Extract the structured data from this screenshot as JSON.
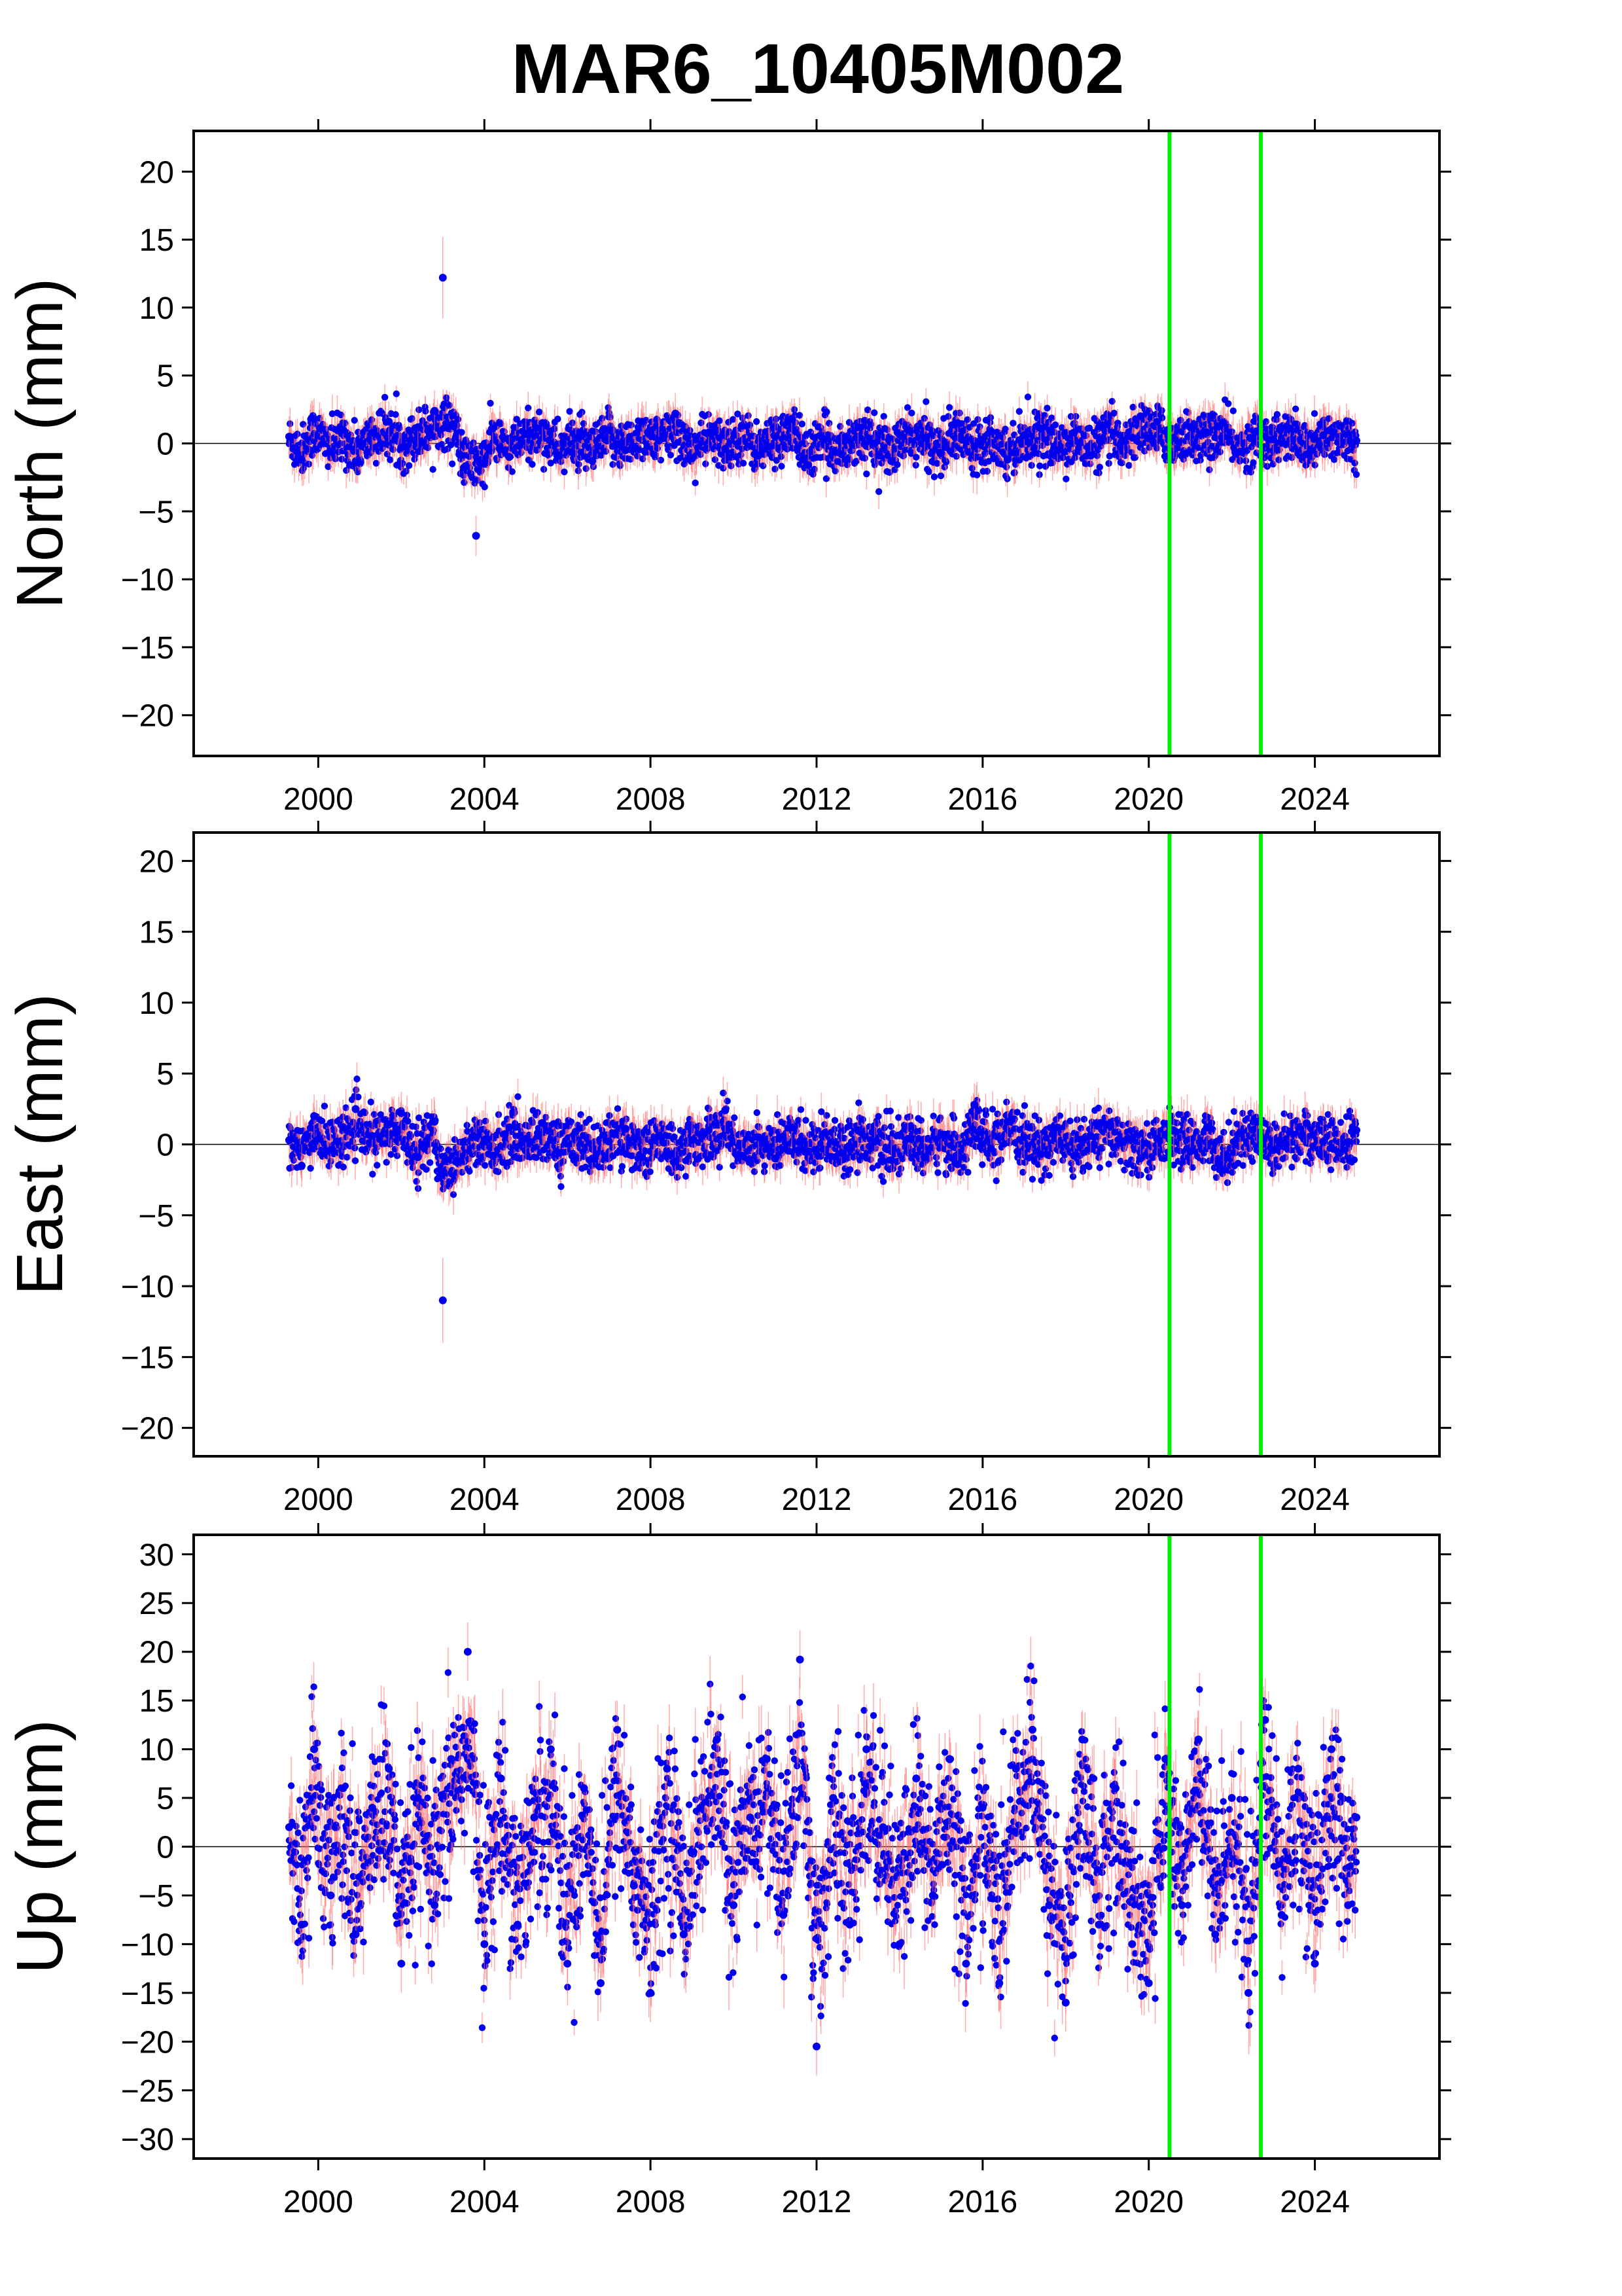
{
  "title": "MAR6_10405M002",
  "colors": {
    "points": "#0000ee",
    "error_bars": "#ff6a6a",
    "event_lines": "#00ee00",
    "zero_line": "#000000"
  },
  "chart_data": [
    {
      "type": "scatter",
      "ylabel": "North (mm)",
      "x_ticks": [
        "2000",
        "2004",
        "2008",
        "2012",
        "2016",
        "2020",
        "2024"
      ],
      "y_ticks": [
        "20",
        "15",
        "10",
        "5",
        "0",
        "−5",
        "−10",
        "−15",
        "−20"
      ],
      "xlim": [
        1997.0,
        2027.0
      ],
      "ylim": [
        -23,
        23
      ],
      "zero_line": true,
      "event_lines": [
        2020.5,
        2022.7
      ],
      "series": [
        {
          "x": [
            1999.3,
            1999.6,
            1999.9,
            2000.3,
            2000.6,
            2000.9,
            2001.3,
            2001.7,
            2002.0,
            2002.4,
            2002.8,
            2003.0,
            2003.4,
            2003.8,
            2004.2,
            2004.6,
            2005.0,
            2005.4,
            2005.8,
            2006.2,
            2006.6,
            2007.0,
            2007.4,
            2007.8,
            2008.2,
            2008.6,
            2009.0,
            2009.4,
            2009.8,
            2010.2,
            2010.6,
            2011.0,
            2011.4,
            2011.8,
            2012.2,
            2012.6,
            2013.0,
            2013.4,
            2013.8,
            2014.2,
            2014.6,
            2015.0,
            2015.4,
            2015.8,
            2016.2,
            2016.6,
            2017.0,
            2017.4,
            2017.8,
            2018.2,
            2018.6,
            2019.0,
            2019.4,
            2019.8,
            2020.2,
            2020.6,
            2021.0,
            2021.4,
            2021.8,
            2022.2,
            2022.6,
            2023.0,
            2023.4,
            2023.8,
            2024.2,
            2024.6,
            2025.0
          ],
          "y": [
            0.5,
            -1.2,
            1.8,
            -0.6,
            1.0,
            -1.4,
            0.8,
            1.6,
            -0.3,
            1.2,
            2.4,
            12.2,
            -0.8,
            -6.8,
            1.1,
            -1.0,
            0.7,
            1.5,
            -0.9,
            0.4,
            -1.3,
            1.0,
            -0.5,
            1.6,
            0.2,
            2.2,
            -1.1,
            0.8,
            -0.4,
            1.3,
            -0.9,
            0.5,
            1.8,
            -1.6,
            0.3,
            -0.8,
            1.2,
            0.0,
            -1.3,
            1.0,
            0.4,
            -0.7,
            1.5,
            -0.2,
            0.9,
            -1.2,
            0.6,
            1.1,
            -0.5,
            0.8,
            -0.9,
            1.4,
            0.2,
            2.0,
            1.6,
            0.4,
            1.2,
            0.8,
            1.5,
            -0.6,
            0.9,
            0.3,
            1.1,
            -0.8,
            0.6,
            1.3,
            0.2
          ]
        }
      ]
    },
    {
      "type": "scatter",
      "ylabel": "East (mm)",
      "x_ticks": [
        "2000",
        "2004",
        "2008",
        "2012",
        "2016",
        "2020",
        "2024"
      ],
      "y_ticks": [
        "20",
        "15",
        "10",
        "5",
        "0",
        "−5",
        "−10",
        "−15",
        "−20"
      ],
      "xlim": [
        1997.0,
        2027.0
      ],
      "ylim": [
        -22,
        22
      ],
      "zero_line": true,
      "event_lines": [
        2020.5,
        2022.7
      ],
      "series": [
        {
          "x": [
            1999.3,
            1999.6,
            1999.9,
            2000.3,
            2000.6,
            2000.9,
            2001.3,
            2001.7,
            2002.0,
            2002.4,
            2002.8,
            2003.0,
            2003.4,
            2003.8,
            2004.2,
            2004.6,
            2005.0,
            2005.4,
            2005.8,
            2006.2,
            2006.6,
            2007.0,
            2007.4,
            2007.8,
            2008.2,
            2008.6,
            2009.0,
            2009.4,
            2009.8,
            2010.2,
            2010.6,
            2011.0,
            2011.4,
            2011.8,
            2012.2,
            2012.6,
            2013.0,
            2013.4,
            2013.8,
            2014.2,
            2014.6,
            2015.0,
            2015.4,
            2015.8,
            2016.2,
            2016.6,
            2017.0,
            2017.4,
            2017.8,
            2018.2,
            2018.6,
            2019.0,
            2019.4,
            2019.8,
            2020.2,
            2020.6,
            2021.0,
            2021.4,
            2021.8,
            2022.2,
            2022.6,
            2023.0,
            2023.4,
            2023.8,
            2024.2,
            2024.6,
            2025.0
          ],
          "y": [
            0.3,
            -1.5,
            2.0,
            -0.4,
            1.2,
            2.5,
            0.6,
            1.4,
            2.2,
            -0.9,
            1.6,
            -11.0,
            -1.2,
            0.5,
            -0.8,
            1.2,
            0.4,
            1.5,
            -0.6,
            0.9,
            -1.0,
            0.2,
            1.1,
            -0.9,
            0.6,
            -1.2,
            0.3,
            1.0,
            2.4,
            -0.8,
            0.5,
            -1.0,
            1.2,
            -0.5,
            0.8,
            -0.6,
            1.0,
            0.2,
            -1.1,
            0.4,
            -0.9,
            0.7,
            -1.4,
            2.8,
            -0.3,
            1.6,
            0.5,
            -0.7,
            1.2,
            -0.8,
            0.6,
            1.4,
            0.2,
            -1.0,
            0.4,
            1.0,
            -0.5,
            1.2,
            -1.8,
            0.8,
            1.6,
            -0.4,
            0.9,
            1.5,
            0.2,
            -0.6,
            1.0
          ]
        }
      ]
    },
    {
      "type": "scatter",
      "ylabel": "Up (mm)",
      "x_ticks": [
        "2000",
        "2004",
        "2008",
        "2012",
        "2016",
        "2020",
        "2024"
      ],
      "y_ticks": [
        "30",
        "25",
        "20",
        "15",
        "10",
        "5",
        "0",
        "−5",
        "−10",
        "−15",
        "−20",
        "−25",
        "−30"
      ],
      "xlim": [
        1997.0,
        2027.0
      ],
      "ylim": [
        -32,
        32
      ],
      "zero_line": true,
      "event_lines": [
        2020.5,
        2022.7
      ],
      "series": [
        {
          "x": [
            1999.3,
            1999.6,
            1999.9,
            2000.3,
            2000.6,
            2000.9,
            2001.3,
            2001.7,
            2002.0,
            2002.4,
            2002.8,
            2003.2,
            2003.6,
            2004.0,
            2004.4,
            2004.8,
            2005.2,
            2005.6,
            2006.0,
            2006.4,
            2006.8,
            2007.2,
            2007.6,
            2008.0,
            2008.4,
            2008.8,
            2009.2,
            2009.6,
            2010.0,
            2010.4,
            2010.8,
            2011.2,
            2011.6,
            2012.0,
            2012.4,
            2012.8,
            2013.2,
            2013.6,
            2014.0,
            2014.4,
            2014.8,
            2015.2,
            2015.6,
            2016.0,
            2016.4,
            2016.8,
            2017.2,
            2017.6,
            2018.0,
            2018.4,
            2018.8,
            2019.2,
            2019.6,
            2020.0,
            2020.4,
            2020.8,
            2021.2,
            2021.6,
            2022.0,
            2022.4,
            2022.8,
            2023.2,
            2023.6,
            2024.0,
            2024.4,
            2024.8,
            2025.0
          ],
          "y": [
            2.0,
            -8.0,
            10.0,
            -5.0,
            6.0,
            -9.0,
            4.0,
            8.0,
            -12.0,
            5.0,
            -6.0,
            9.0,
            20.0,
            -10.0,
            7.0,
            -8.0,
            3.0,
            10.0,
            -12.0,
            6.0,
            -14.0,
            12.0,
            -4.0,
            -15.0,
            8.0,
            -9.0,
            4.0,
            11.0,
            -6.0,
            3.0,
            9.0,
            -7.0,
            19.2,
            -20.5,
            5.0,
            -8.0,
            10.0,
            2.0,
            -10.0,
            7.0,
            -5.0,
            9.0,
            -12.0,
            4.0,
            -14.0,
            8.0,
            12.0,
            -6.0,
            -16.0,
            11.0,
            -8.0,
            6.0,
            -10.0,
            -14.0,
            9.0,
            -6.0,
            11.0,
            -9.0,
            5.0,
            -15.0,
            13.0,
            -7.0,
            8.0,
            -12.0,
            10.0,
            -6.0,
            3.0
          ]
        }
      ]
    }
  ]
}
